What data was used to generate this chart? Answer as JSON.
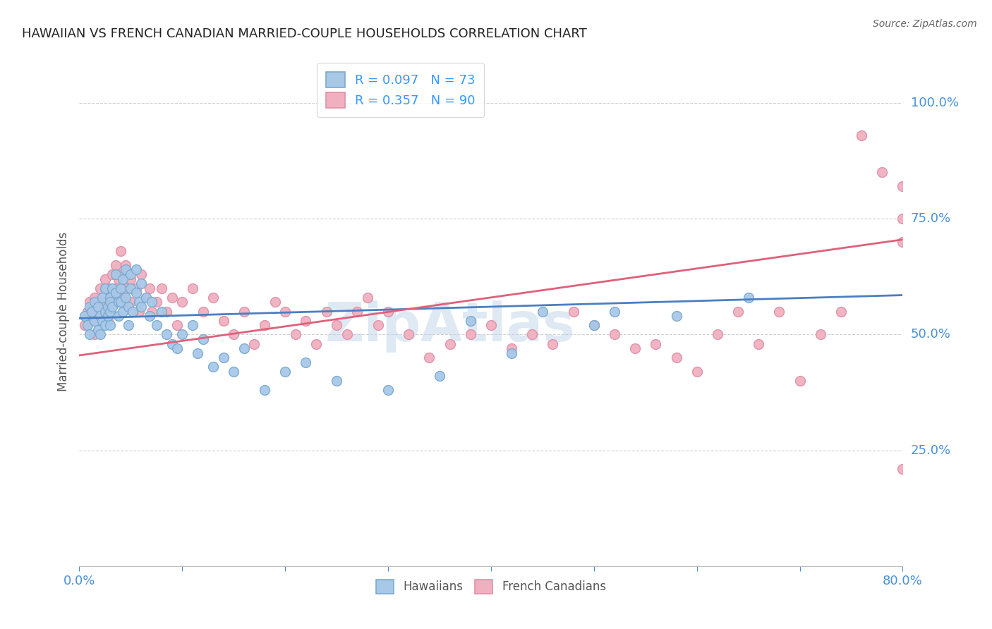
{
  "title": "HAWAIIAN VS FRENCH CANADIAN MARRIED-COUPLE HOUSEHOLDS CORRELATION CHART",
  "source": "Source: ZipAtlas.com",
  "ylabel": "Married-couple Households",
  "ytick_labels": [
    "100.0%",
    "75.0%",
    "50.0%",
    "25.0%"
  ],
  "ytick_values": [
    1.0,
    0.75,
    0.5,
    0.25
  ],
  "xlim": [
    0.0,
    0.8
  ],
  "ylim": [
    0.0,
    1.1
  ],
  "line_blue_color": "#4a7fc1",
  "line_pink_color": "#e0607a",
  "scatter_blue_color": "#a8c8e8",
  "scatter_pink_color": "#f0b0c0",
  "scatter_edge_blue": "#7aaad0",
  "scatter_edge_pink": "#e090a8",
  "watermark": "ZipAtlas",
  "grid_color": "#d0d0d0",
  "background_color": "#ffffff",
  "title_color": "#222222",
  "source_color": "#666666",
  "axis_label_color": "#555555",
  "tick_label_color": "#4a90d9",
  "legend_text_color": "#333333",
  "legend_value_color": "#3399ff",
  "hawaiians_x": [
    0.005,
    0.008,
    0.01,
    0.01,
    0.012,
    0.015,
    0.015,
    0.018,
    0.018,
    0.02,
    0.02,
    0.022,
    0.022,
    0.025,
    0.025,
    0.025,
    0.028,
    0.028,
    0.03,
    0.03,
    0.03,
    0.03,
    0.032,
    0.032,
    0.035,
    0.035,
    0.038,
    0.038,
    0.04,
    0.04,
    0.042,
    0.042,
    0.045,
    0.045,
    0.048,
    0.048,
    0.05,
    0.05,
    0.052,
    0.055,
    0.055,
    0.058,
    0.06,
    0.06,
    0.065,
    0.068,
    0.07,
    0.075,
    0.08,
    0.085,
    0.09,
    0.095,
    0.1,
    0.11,
    0.115,
    0.12,
    0.13,
    0.14,
    0.15,
    0.16,
    0.18,
    0.2,
    0.22,
    0.25,
    0.3,
    0.35,
    0.38,
    0.42,
    0.45,
    0.5,
    0.52,
    0.58,
    0.65
  ],
  "hawaiians_y": [
    0.54,
    0.52,
    0.56,
    0.5,
    0.55,
    0.53,
    0.57,
    0.51,
    0.56,
    0.54,
    0.5,
    0.58,
    0.53,
    0.55,
    0.52,
    0.6,
    0.56,
    0.54,
    0.58,
    0.55,
    0.52,
    0.57,
    0.6,
    0.56,
    0.63,
    0.59,
    0.57,
    0.54,
    0.6,
    0.57,
    0.55,
    0.62,
    0.64,
    0.58,
    0.56,
    0.52,
    0.63,
    0.6,
    0.55,
    0.64,
    0.59,
    0.57,
    0.61,
    0.56,
    0.58,
    0.54,
    0.57,
    0.52,
    0.55,
    0.5,
    0.48,
    0.47,
    0.5,
    0.52,
    0.46,
    0.49,
    0.43,
    0.45,
    0.42,
    0.47,
    0.38,
    0.42,
    0.44,
    0.4,
    0.38,
    0.41,
    0.53,
    0.46,
    0.55,
    0.52,
    0.55,
    0.54,
    0.58
  ],
  "french_canadians_x": [
    0.005,
    0.008,
    0.01,
    0.012,
    0.015,
    0.015,
    0.018,
    0.02,
    0.02,
    0.022,
    0.025,
    0.025,
    0.028,
    0.028,
    0.03,
    0.03,
    0.032,
    0.032,
    0.035,
    0.035,
    0.038,
    0.038,
    0.04,
    0.04,
    0.042,
    0.045,
    0.045,
    0.048,
    0.05,
    0.05,
    0.055,
    0.058,
    0.06,
    0.065,
    0.068,
    0.07,
    0.075,
    0.08,
    0.085,
    0.09,
    0.095,
    0.1,
    0.11,
    0.12,
    0.13,
    0.14,
    0.15,
    0.16,
    0.17,
    0.18,
    0.19,
    0.2,
    0.21,
    0.22,
    0.23,
    0.24,
    0.25,
    0.26,
    0.27,
    0.28,
    0.29,
    0.3,
    0.32,
    0.34,
    0.36,
    0.38,
    0.4,
    0.42,
    0.44,
    0.46,
    0.48,
    0.5,
    0.52,
    0.54,
    0.56,
    0.58,
    0.6,
    0.62,
    0.64,
    0.66,
    0.68,
    0.7,
    0.72,
    0.74,
    0.76,
    0.78,
    0.8,
    0.8,
    0.8,
    0.8
  ],
  "french_canadians_y": [
    0.52,
    0.55,
    0.57,
    0.53,
    0.58,
    0.5,
    0.55,
    0.6,
    0.54,
    0.57,
    0.62,
    0.56,
    0.58,
    0.53,
    0.6,
    0.55,
    0.63,
    0.57,
    0.65,
    0.6,
    0.62,
    0.58,
    0.68,
    0.63,
    0.58,
    0.65,
    0.6,
    0.56,
    0.62,
    0.57,
    0.6,
    0.55,
    0.63,
    0.58,
    0.6,
    0.55,
    0.57,
    0.6,
    0.55,
    0.58,
    0.52,
    0.57,
    0.6,
    0.55,
    0.58,
    0.53,
    0.5,
    0.55,
    0.48,
    0.52,
    0.57,
    0.55,
    0.5,
    0.53,
    0.48,
    0.55,
    0.52,
    0.5,
    0.55,
    0.58,
    0.52,
    0.55,
    0.5,
    0.45,
    0.48,
    0.5,
    0.52,
    0.47,
    0.5,
    0.48,
    0.55,
    0.52,
    0.5,
    0.47,
    0.48,
    0.45,
    0.42,
    0.5,
    0.55,
    0.48,
    0.55,
    0.4,
    0.5,
    0.55,
    0.93,
    0.85,
    0.21,
    0.75,
    0.7,
    0.82
  ]
}
